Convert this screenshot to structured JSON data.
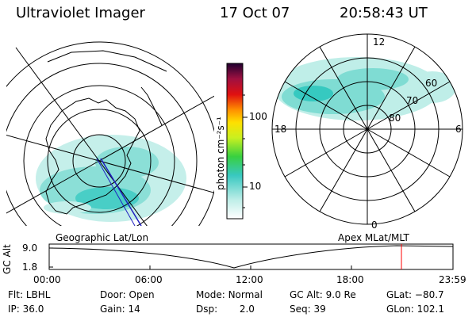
{
  "header": {
    "title": "Ultraviolet Imager",
    "date": "17 Oct 07",
    "time": "20:58:43 UT"
  },
  "colorbar": {
    "unit_label": "photon cm⁻²s⁻¹",
    "ticks": [
      "100",
      "10"
    ]
  },
  "geo_panel": {
    "label": "Geographic Lat/Lon"
  },
  "mag_panel": {
    "label": "Apex MLat/MLT",
    "lat_labels": [
      "60",
      "70",
      "80"
    ],
    "mlt_labels": {
      "top": "12",
      "bottom": "0",
      "left": "18",
      "right": "6"
    }
  },
  "altitude_plot": {
    "ylabel": "GC Alt",
    "yticks": [
      "9.0",
      "1.8"
    ],
    "xticks": [
      "00:00",
      "06:00",
      "12:00",
      "18:00",
      "23:59"
    ],
    "current_time_marker_hours": 20.98
  },
  "status": {
    "flt_label": "Flt:",
    "flt_value": "LBHL",
    "ip_label": "IP:",
    "ip_value": "36.0",
    "door_label": "Door:",
    "door_value": "Open",
    "gain_label": "Gain:",
    "gain_value": "14",
    "mode_label": "Mode:",
    "mode_value": "Normal",
    "dsp_label": "Dsp:",
    "dsp_value": "2.0",
    "gcalt_label": "GC Alt:",
    "gcalt_value": "9.0 Re",
    "seq_label": "Seq:",
    "seq_value": "39",
    "glat_label": "GLat:",
    "glat_value": "−80.7",
    "glon_label": "GLon:",
    "glon_value": "102.1"
  },
  "colors": {
    "aurora_light": "#bfeee8",
    "aurora_mid": "#7fdcd3",
    "aurora_strong": "#36c9c0",
    "marker": "#ff0000",
    "orbit_track": "#2020c0"
  }
}
